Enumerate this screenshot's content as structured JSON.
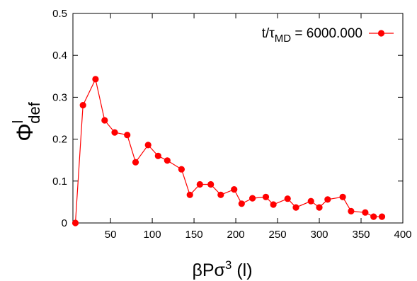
{
  "chart_data": {
    "type": "line",
    "xlabel": {
      "base": "βPσ",
      "sup": "3",
      "rest": " (l)"
    },
    "ylabel": {
      "base": "Φ",
      "sup": "l",
      "sub": "def"
    },
    "xlim": [
      5,
      400
    ],
    "ylim": [
      0,
      0.5
    ],
    "xticks": [
      50,
      100,
      150,
      200,
      250,
      300,
      350,
      400
    ],
    "yticks": [
      0,
      0.1,
      0.2,
      0.3,
      0.4,
      0.5
    ],
    "ytick_labels": [
      "0",
      "0.1",
      "0.2",
      "0.3",
      "0.4",
      "0.5"
    ],
    "grid": false,
    "legend_position": "top-right",
    "series": [
      {
        "name": {
          "t": "t/τ",
          "sub": "MD",
          "rest": " = 6000.000"
        },
        "color": "#ff0000",
        "marker": "circle",
        "x": [
          8,
          17,
          32,
          43,
          55,
          70,
          80,
          95,
          107,
          118,
          135,
          145,
          157,
          170,
          182,
          198,
          207,
          220,
          236,
          245,
          262,
          272,
          290,
          300,
          310,
          328,
          338,
          355,
          365,
          375
        ],
        "y": [
          0.0,
          0.281,
          0.343,
          0.245,
          0.216,
          0.21,
          0.145,
          0.186,
          0.16,
          0.149,
          0.128,
          0.067,
          0.092,
          0.092,
          0.067,
          0.08,
          0.046,
          0.059,
          0.062,
          0.044,
          0.058,
          0.037,
          0.052,
          0.037,
          0.056,
          0.062,
          0.028,
          0.025,
          0.015,
          0.015
        ]
      }
    ]
  }
}
